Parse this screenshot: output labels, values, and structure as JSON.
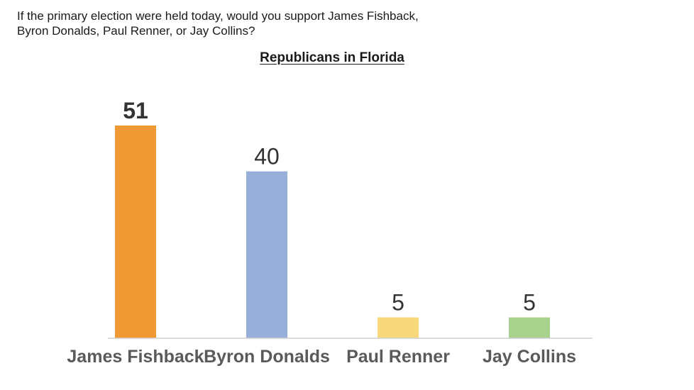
{
  "question": {
    "line1": "If the primary election were held today, would you support James Fishback,",
    "line2": "Byron Donalds, Paul Renner, or Jay Collins?"
  },
  "chart_data": {
    "type": "bar",
    "title": "Republicans in Florida",
    "categories": [
      "James Fishback",
      "Byron Donalds",
      "Paul Renner",
      "Jay Collins"
    ],
    "values": [
      51,
      40,
      5,
      5
    ],
    "colors": [
      "#F09A36",
      "#98AEDB",
      "#F7D97C",
      "#A9D18E"
    ],
    "highlight_index": 0,
    "xlabel": "",
    "ylabel": "",
    "ylim": [
      0,
      51
    ],
    "grid": false,
    "legend": "none"
  }
}
